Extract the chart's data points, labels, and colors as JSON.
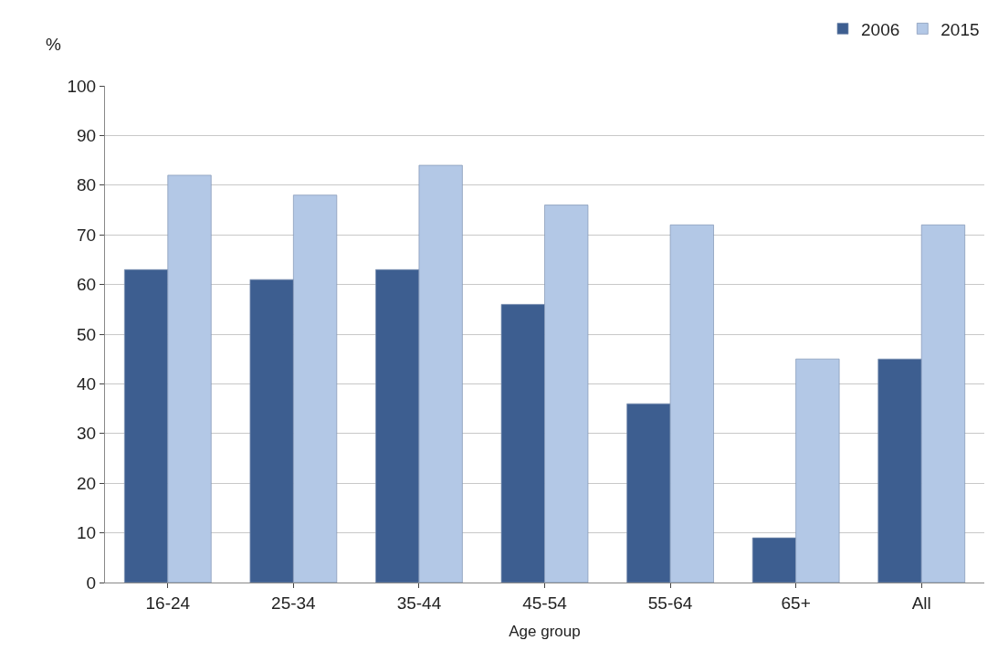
{
  "chart_data": {
    "type": "bar",
    "xlabel": "Age group",
    "ylabel": "%",
    "categories": [
      "16-24",
      "25-34",
      "35-44",
      "45-54",
      "55-64",
      "65+",
      "All"
    ],
    "series": [
      {
        "name": "2006",
        "color": "#3d5e90",
        "values": [
          63,
          61,
          63,
          56,
          36,
          9,
          45
        ]
      },
      {
        "name": "2015",
        "color": "#b3c8e6",
        "values": [
          82,
          78,
          84,
          76,
          72,
          45,
          72
        ]
      }
    ],
    "ylim": [
      0,
      100
    ],
    "yticks": [
      0,
      10,
      20,
      30,
      40,
      50,
      60,
      70,
      80,
      90,
      100
    ],
    "grid": "y",
    "legend": "top right"
  }
}
